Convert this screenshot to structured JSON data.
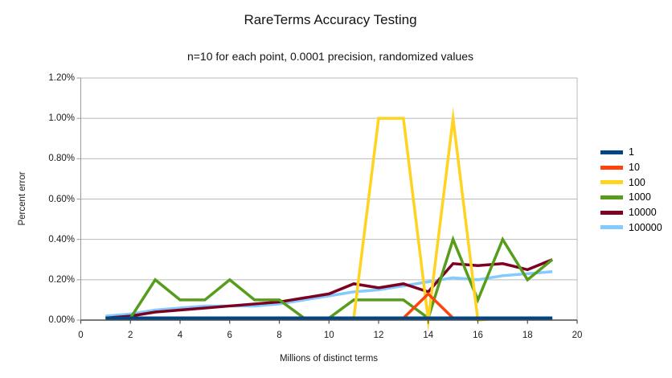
{
  "header": {
    "title": "RareTerms Accuracy Testing",
    "subtitle": "n=10 for each point, 0.0001 precision, randomized values"
  },
  "chart_data": {
    "type": "line",
    "title": "RareTerms Accuracy Testing",
    "subtitle": "n=10 for each point, 0.0001 precision, randomized values",
    "xlabel": "Millions of distinct terms",
    "ylabel": "Percent error",
    "xlim": [
      0,
      20
    ],
    "ylim": [
      0,
      1.2
    ],
    "y_unit": "%",
    "grid": "horizontal",
    "legend_position": "right",
    "x_ticks": [
      "0",
      "2",
      "4",
      "6",
      "8",
      "10",
      "12",
      "14",
      "16",
      "18",
      "20"
    ],
    "y_ticks": [
      "0.00%",
      "0.20%",
      "0.40%",
      "0.60%",
      "0.80%",
      "1.00%",
      "1.20%"
    ],
    "x": [
      1,
      2,
      3,
      4,
      5,
      6,
      7,
      8,
      9,
      10,
      11,
      12,
      13,
      14,
      15,
      16,
      17,
      18,
      19
    ],
    "series": [
      {
        "name": "1",
        "color": "#004586",
        "values": [
          0.01,
          0.01,
          0.01,
          0.01,
          0.01,
          0.01,
          0.01,
          0.01,
          0.01,
          0.01,
          0.01,
          0.01,
          0.01,
          0.01,
          0.01,
          0.01,
          0.01,
          0.01,
          0.01
        ]
      },
      {
        "name": "10",
        "color": "#ff420e",
        "values": [
          0.01,
          0.01,
          0.01,
          0.01,
          0.01,
          0.01,
          0.01,
          0.01,
          0.01,
          0.01,
          0.01,
          0.01,
          0.01,
          0.13,
          0.01,
          0.01,
          0.01,
          0.01,
          0.01
        ]
      },
      {
        "name": "100",
        "color": "#ffd320",
        "values": [
          0.01,
          0.01,
          0.01,
          0.01,
          0.01,
          0.01,
          0.01,
          0.01,
          0.01,
          0.01,
          0.01,
          1.0,
          1.0,
          0.0,
          1.0,
          0.0,
          0.01,
          0.01,
          0.01
        ]
      },
      {
        "name": "1000",
        "color": "#579d1c",
        "values": [
          0.01,
          0.01,
          0.2,
          0.1,
          0.1,
          0.2,
          0.1,
          0.1,
          0.01,
          0.01,
          0.1,
          0.1,
          0.1,
          0.01,
          0.4,
          0.1,
          0.4,
          0.2,
          0.3
        ]
      },
      {
        "name": "10000",
        "color": "#7e0021",
        "values": [
          0.01,
          0.02,
          0.04,
          0.05,
          0.06,
          0.07,
          0.08,
          0.09,
          0.11,
          0.13,
          0.18,
          0.16,
          0.18,
          0.14,
          0.28,
          0.27,
          0.28,
          0.25,
          0.3
        ]
      },
      {
        "name": "100000",
        "color": "#83caff",
        "values": [
          0.02,
          0.03,
          0.05,
          0.06,
          0.07,
          0.07,
          0.07,
          0.08,
          0.1,
          0.12,
          0.14,
          0.15,
          0.17,
          0.19,
          0.21,
          0.2,
          0.22,
          0.23,
          0.24
        ]
      }
    ]
  }
}
